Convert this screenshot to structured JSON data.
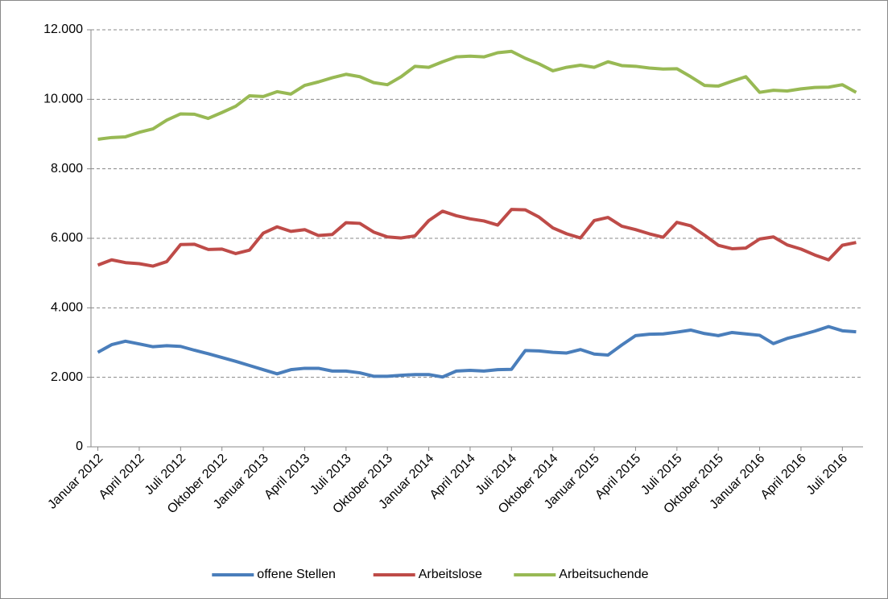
{
  "chart_data": {
    "type": "line",
    "categories": [
      "Januar 2012",
      null,
      null,
      "April 2012",
      null,
      null,
      "Juli 2012",
      null,
      null,
      "Oktober 2012",
      null,
      null,
      "Januar 2013",
      null,
      null,
      "April 2013",
      null,
      null,
      "Juli 2013",
      null,
      null,
      "Oktober 2013",
      null,
      null,
      "Januar 2014",
      null,
      null,
      "April 2014",
      null,
      null,
      "Juli 2014",
      null,
      null,
      "Oktober 2014",
      null,
      null,
      "Januar 2015",
      null,
      null,
      "April 2015",
      null,
      null,
      "Juli 2015",
      null,
      null,
      "Oktober 2015",
      null,
      null,
      "Januar 2016",
      null,
      null,
      "April 2016",
      null,
      null,
      "Juli 2016",
      null
    ],
    "series": [
      {
        "name": "offene Stellen",
        "color": "#4a7ebb",
        "values": [
          2720,
          2940,
          3040,
          2960,
          2880,
          2910,
          2890,
          2780,
          2680,
          2570,
          2460,
          2340,
          2220,
          2100,
          2220,
          2260,
          2260,
          2180,
          2180,
          2130,
          2030,
          2030,
          2060,
          2080,
          2080,
          2010,
          2180,
          2200,
          2180,
          2220,
          2230,
          2770,
          2760,
          2720,
          2700,
          2800,
          2670,
          2640,
          2930,
          3200,
          3240,
          3250,
          3300,
          3360,
          3260,
          3200,
          3290,
          3250,
          3210,
          2970,
          3120,
          3220,
          3330,
          3460,
          3340,
          3310
        ]
      },
      {
        "name": "Arbeitslose",
        "color": "#be4b48",
        "values": [
          5230,
          5380,
          5300,
          5270,
          5200,
          5330,
          5820,
          5830,
          5680,
          5690,
          5560,
          5660,
          6150,
          6330,
          6200,
          6250,
          6080,
          6110,
          6450,
          6430,
          6180,
          6040,
          6010,
          6070,
          6510,
          6780,
          6650,
          6560,
          6500,
          6380,
          6830,
          6820,
          6610,
          6300,
          6130,
          6010,
          6510,
          6600,
          6350,
          6250,
          6130,
          6030,
          6460,
          6360,
          6090,
          5800,
          5700,
          5720,
          5980,
          6040,
          5810,
          5690,
          5520,
          5380,
          5800,
          5880
        ]
      },
      {
        "name": "Arbeitsuchende",
        "color": "#98b954",
        "values": [
          8850,
          8900,
          8920,
          9050,
          9150,
          9400,
          9580,
          9570,
          9450,
          9620,
          9800,
          10100,
          10080,
          10220,
          10150,
          10400,
          10500,
          10620,
          10720,
          10650,
          10480,
          10420,
          10650,
          10950,
          10920,
          11080,
          11220,
          11240,
          11220,
          11340,
          11380,
          11180,
          11020,
          10820,
          10920,
          10980,
          10920,
          11080,
          10970,
          10950,
          10900,
          10870,
          10880,
          10650,
          10400,
          10380,
          10520,
          10650,
          10200,
          10260,
          10240,
          10300,
          10340,
          10350,
          10420,
          10200
        ]
      }
    ],
    "ylim": [
      0,
      12000
    ],
    "yticks": [
      0,
      {
        "value": 2000,
        "label": "2.000"
      },
      {
        "value": 4000,
        "label": "4.000"
      },
      {
        "value": 6000,
        "label": "6.000"
      },
      {
        "value": 8000,
        "label": "8.000"
      },
      {
        "value": 10000,
        "label": "10.000"
      },
      {
        "value": 12000,
        "label": "12.000"
      }
    ],
    "grid": true,
    "legend": "bottom"
  }
}
